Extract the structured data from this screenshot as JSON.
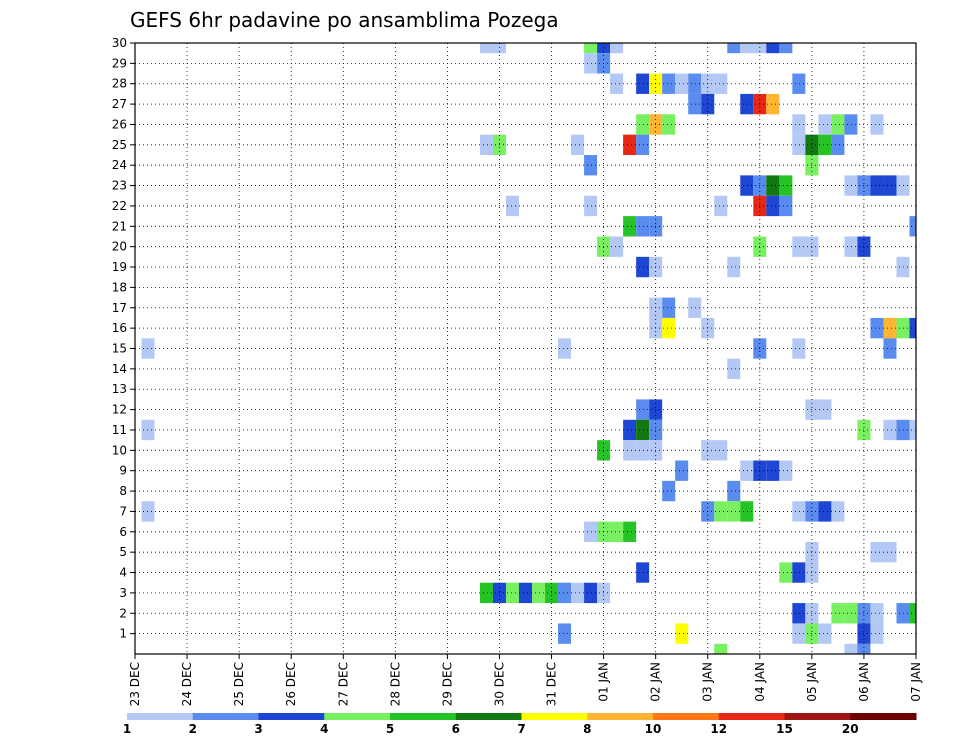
{
  "chart_data": {
    "type": "heatmap",
    "title": "GEFS 6hr padavine po ansamblima Pozega",
    "xlabel": "",
    "ylabel": "",
    "y_ticks": [
      1,
      2,
      3,
      4,
      5,
      6,
      7,
      8,
      9,
      10,
      11,
      12,
      13,
      14,
      15,
      16,
      17,
      18,
      19,
      20,
      21,
      22,
      23,
      24,
      25,
      26,
      27,
      28,
      29,
      30
    ],
    "y_range": [
      0,
      30
    ],
    "x_ticks": [
      "23 DEC",
      "24 DEC",
      "25 DEC",
      "26 DEC",
      "27 DEC",
      "28 DEC",
      "29 DEC",
      "30 DEC",
      "31 DEC",
      "01 JAN",
      "02 JAN",
      "03 JAN",
      "04 JAN",
      "05 JAN",
      "06 JAN",
      "07 JAN"
    ],
    "x_range": [
      0,
      15
    ],
    "time_step_days": 0.25,
    "grid": true,
    "colorbar": {
      "placement": "bottom",
      "labels": [
        "1",
        "2",
        "3",
        "4",
        "5",
        "6",
        "7",
        "8",
        "10",
        "12",
        "15",
        "20"
      ],
      "colors": [
        "#b4c8f5",
        "#5a8cf0",
        "#1e46d2",
        "#78f062",
        "#26c326",
        "#127812",
        "#ffff00",
        "#ffb432",
        "#ff7814",
        "#e62814",
        "#a01414",
        "#6e0000"
      ]
    },
    "cells": [
      {
        "x": 6.75,
        "member": 30,
        "level": 0
      },
      {
        "x": 7,
        "member": 30,
        "level": 0
      },
      {
        "x": 8.75,
        "member": 30,
        "level": 3
      },
      {
        "x": 9,
        "member": 30,
        "level": 2
      },
      {
        "x": 9.25,
        "member": 30,
        "level": 0
      },
      {
        "x": 11.5,
        "member": 30,
        "level": 1
      },
      {
        "x": 11.75,
        "member": 30,
        "level": 0
      },
      {
        "x": 12,
        "member": 30,
        "level": 0
      },
      {
        "x": 12.25,
        "member": 30,
        "level": 2
      },
      {
        "x": 12.5,
        "member": 30,
        "level": 1
      },
      {
        "x": 8.75,
        "member": 29,
        "level": 0
      },
      {
        "x": 9,
        "member": 29,
        "level": 1
      },
      {
        "x": 9.25,
        "member": 28,
        "level": 0
      },
      {
        "x": 9.75,
        "member": 28,
        "level": 2
      },
      {
        "x": 10,
        "member": 28,
        "level": 6
      },
      {
        "x": 10.25,
        "member": 28,
        "level": 1
      },
      {
        "x": 10.5,
        "member": 28,
        "level": 0
      },
      {
        "x": 10.75,
        "member": 28,
        "level": 1
      },
      {
        "x": 11,
        "member": 28,
        "level": 0
      },
      {
        "x": 11.25,
        "member": 28,
        "level": 0
      },
      {
        "x": 12.75,
        "member": 28,
        "level": 1
      },
      {
        "x": 10.75,
        "member": 27,
        "level": 1
      },
      {
        "x": 11,
        "member": 27,
        "level": 2
      },
      {
        "x": 11.75,
        "member": 27,
        "level": 2
      },
      {
        "x": 12,
        "member": 27,
        "level": 9
      },
      {
        "x": 12.25,
        "member": 27,
        "level": 7
      },
      {
        "x": 9.75,
        "member": 26,
        "level": 3
      },
      {
        "x": 10,
        "member": 26,
        "level": 7
      },
      {
        "x": 10.25,
        "member": 26,
        "level": 3
      },
      {
        "x": 12.75,
        "member": 26,
        "level": 0
      },
      {
        "x": 13.25,
        "member": 26,
        "level": 0
      },
      {
        "x": 13.5,
        "member": 26,
        "level": 3
      },
      {
        "x": 13.75,
        "member": 26,
        "level": 1
      },
      {
        "x": 14.25,
        "member": 26,
        "level": 0
      },
      {
        "x": 6.75,
        "member": 25,
        "level": 0
      },
      {
        "x": 7,
        "member": 25,
        "level": 3
      },
      {
        "x": 8.5,
        "member": 25,
        "level": 0
      },
      {
        "x": 9.5,
        "member": 25,
        "level": 9
      },
      {
        "x": 9.75,
        "member": 25,
        "level": 1
      },
      {
        "x": 12.75,
        "member": 25,
        "level": 0
      },
      {
        "x": 13,
        "member": 25,
        "level": 5
      },
      {
        "x": 13.25,
        "member": 25,
        "level": 4
      },
      {
        "x": 13.5,
        "member": 25,
        "level": 1
      },
      {
        "x": 8.75,
        "member": 24,
        "level": 1
      },
      {
        "x": 13,
        "member": 24,
        "level": 3
      },
      {
        "x": 11.75,
        "member": 23,
        "level": 2
      },
      {
        "x": 12,
        "member": 23,
        "level": 1
      },
      {
        "x": 12.25,
        "member": 23,
        "level": 5
      },
      {
        "x": 12.5,
        "member": 23,
        "level": 4
      },
      {
        "x": 13.75,
        "member": 23,
        "level": 0
      },
      {
        "x": 14,
        "member": 23,
        "level": 1
      },
      {
        "x": 14.25,
        "member": 23,
        "level": 2
      },
      {
        "x": 14.5,
        "member": 23,
        "level": 2
      },
      {
        "x": 14.75,
        "member": 23,
        "level": 0
      },
      {
        "x": 7.25,
        "member": 22,
        "level": 0
      },
      {
        "x": 8.75,
        "member": 22,
        "level": 0
      },
      {
        "x": 11.25,
        "member": 22,
        "level": 0
      },
      {
        "x": 12,
        "member": 22,
        "level": 9
      },
      {
        "x": 12.25,
        "member": 22,
        "level": 2
      },
      {
        "x": 12.5,
        "member": 22,
        "level": 1
      },
      {
        "x": 9.5,
        "member": 21,
        "level": 4
      },
      {
        "x": 9.75,
        "member": 21,
        "level": 1
      },
      {
        "x": 10,
        "member": 21,
        "level": 1
      },
      {
        "x": 15,
        "member": 21,
        "level": 1
      },
      {
        "x": 9,
        "member": 20,
        "level": 3
      },
      {
        "x": 9.25,
        "member": 20,
        "level": 0
      },
      {
        "x": 12,
        "member": 20,
        "level": 3
      },
      {
        "x": 12.75,
        "member": 20,
        "level": 0
      },
      {
        "x": 13,
        "member": 20,
        "level": 0
      },
      {
        "x": 13.75,
        "member": 20,
        "level": 0
      },
      {
        "x": 14,
        "member": 20,
        "level": 2
      },
      {
        "x": 9.75,
        "member": 19,
        "level": 2
      },
      {
        "x": 10,
        "member": 19,
        "level": 0
      },
      {
        "x": 11.5,
        "member": 19,
        "level": 0
      },
      {
        "x": 14.75,
        "member": 19,
        "level": 0
      },
      {
        "x": 15.25,
        "member": 19,
        "level": 2
      },
      {
        "x": 10,
        "member": 17,
        "level": 0
      },
      {
        "x": 10.25,
        "member": 17,
        "level": 1
      },
      {
        "x": 10.75,
        "member": 17,
        "level": 0
      },
      {
        "x": 15.25,
        "member": 17,
        "level": 0
      },
      {
        "x": 10,
        "member": 16,
        "level": 0
      },
      {
        "x": 10.25,
        "member": 16,
        "level": 6
      },
      {
        "x": 11,
        "member": 16,
        "level": 0
      },
      {
        "x": 14.25,
        "member": 16,
        "level": 1
      },
      {
        "x": 14.5,
        "member": 16,
        "level": 7
      },
      {
        "x": 14.75,
        "member": 16,
        "level": 3
      },
      {
        "x": 15,
        "member": 16,
        "level": 2
      },
      {
        "x": 0.25,
        "member": 15,
        "level": 0
      },
      {
        "x": 8.25,
        "member": 15,
        "level": 0
      },
      {
        "x": 12,
        "member": 15,
        "level": 1
      },
      {
        "x": 12.75,
        "member": 15,
        "level": 0
      },
      {
        "x": 14.5,
        "member": 15,
        "level": 1
      },
      {
        "x": 11.5,
        "member": 14,
        "level": 0
      },
      {
        "x": 9.75,
        "member": 12,
        "level": 1
      },
      {
        "x": 10,
        "member": 12,
        "level": 2
      },
      {
        "x": 13,
        "member": 12,
        "level": 0
      },
      {
        "x": 13.25,
        "member": 12,
        "level": 0
      },
      {
        "x": 0.25,
        "member": 11,
        "level": 0
      },
      {
        "x": 9.5,
        "member": 11,
        "level": 2
      },
      {
        "x": 9.75,
        "member": 11,
        "level": 5
      },
      {
        "x": 10,
        "member": 11,
        "level": 1
      },
      {
        "x": 14,
        "member": 11,
        "level": 3
      },
      {
        "x": 14.5,
        "member": 11,
        "level": 0
      },
      {
        "x": 14.75,
        "member": 11,
        "level": 1
      },
      {
        "x": 15,
        "member": 11,
        "level": 0
      },
      {
        "x": 9,
        "member": 10,
        "level": 4
      },
      {
        "x": 9.5,
        "member": 10,
        "level": 0
      },
      {
        "x": 9.75,
        "member": 10,
        "level": 0
      },
      {
        "x": 10,
        "member": 10,
        "level": 0
      },
      {
        "x": 11,
        "member": 10,
        "level": 0
      },
      {
        "x": 11.25,
        "member": 10,
        "level": 0
      },
      {
        "x": 10.5,
        "member": 9,
        "level": 1
      },
      {
        "x": 11.75,
        "member": 9,
        "level": 0
      },
      {
        "x": 12,
        "member": 9,
        "level": 2
      },
      {
        "x": 12.25,
        "member": 9,
        "level": 2
      },
      {
        "x": 12.5,
        "member": 9,
        "level": 0
      },
      {
        "x": 10.25,
        "member": 8,
        "level": 1
      },
      {
        "x": 11.5,
        "member": 8,
        "level": 1
      },
      {
        "x": 0.25,
        "member": 7,
        "level": 0
      },
      {
        "x": 11,
        "member": 7,
        "level": 1
      },
      {
        "x": 11.25,
        "member": 7,
        "level": 3
      },
      {
        "x": 11.5,
        "member": 7,
        "level": 3
      },
      {
        "x": 11.75,
        "member": 7,
        "level": 4
      },
      {
        "x": 12.75,
        "member": 7,
        "level": 0
      },
      {
        "x": 13,
        "member": 7,
        "level": 1
      },
      {
        "x": 13.25,
        "member": 7,
        "level": 2
      },
      {
        "x": 13.5,
        "member": 7,
        "level": 0
      },
      {
        "x": 8.75,
        "member": 6,
        "level": 0
      },
      {
        "x": 9,
        "member": 6,
        "level": 3
      },
      {
        "x": 9.25,
        "member": 6,
        "level": 3
      },
      {
        "x": 9.5,
        "member": 6,
        "level": 4
      },
      {
        "x": 13,
        "member": 5,
        "level": 0
      },
      {
        "x": 14.25,
        "member": 5,
        "level": 0
      },
      {
        "x": 14.5,
        "member": 5,
        "level": 0
      },
      {
        "x": 9.75,
        "member": 4,
        "level": 2
      },
      {
        "x": 12.5,
        "member": 4,
        "level": 3
      },
      {
        "x": 12.75,
        "member": 4,
        "level": 2
      },
      {
        "x": 13,
        "member": 4,
        "level": 0
      },
      {
        "x": 6.75,
        "member": 3,
        "level": 4
      },
      {
        "x": 7,
        "member": 3,
        "level": 2
      },
      {
        "x": 7.25,
        "member": 3,
        "level": 3
      },
      {
        "x": 7.5,
        "member": 3,
        "level": 2
      },
      {
        "x": 7.75,
        "member": 3,
        "level": 3
      },
      {
        "x": 8,
        "member": 3,
        "level": 4
      },
      {
        "x": 8.25,
        "member": 3,
        "level": 1
      },
      {
        "x": 8.5,
        "member": 3,
        "level": 0
      },
      {
        "x": 8.75,
        "member": 3,
        "level": 2
      },
      {
        "x": 9,
        "member": 3,
        "level": 0
      },
      {
        "x": 12.75,
        "member": 2,
        "level": 2
      },
      {
        "x": 13,
        "member": 2,
        "level": 0
      },
      {
        "x": 13.5,
        "member": 2,
        "level": 3
      },
      {
        "x": 13.75,
        "member": 2,
        "level": 3
      },
      {
        "x": 14,
        "member": 2,
        "level": 1
      },
      {
        "x": 14.25,
        "member": 2,
        "level": 0
      },
      {
        "x": 14.75,
        "member": 2,
        "level": 1
      },
      {
        "x": 15,
        "member": 2,
        "level": 4
      },
      {
        "x": 8.25,
        "member": 1,
        "level": 1
      },
      {
        "x": 10.5,
        "member": 1,
        "level": 6
      },
      {
        "x": 12.75,
        "member": 1,
        "level": 0
      },
      {
        "x": 13,
        "member": 1,
        "level": 3
      },
      {
        "x": 13.25,
        "member": 1,
        "level": 0
      },
      {
        "x": 14,
        "member": 1,
        "level": 2
      },
      {
        "x": 14.25,
        "member": 1,
        "level": 0
      },
      {
        "x": 11.25,
        "member": 0,
        "level": 3
      },
      {
        "x": 13.75,
        "member": 0,
        "level": 0
      },
      {
        "x": 14,
        "member": 0,
        "level": 1
      }
    ]
  }
}
